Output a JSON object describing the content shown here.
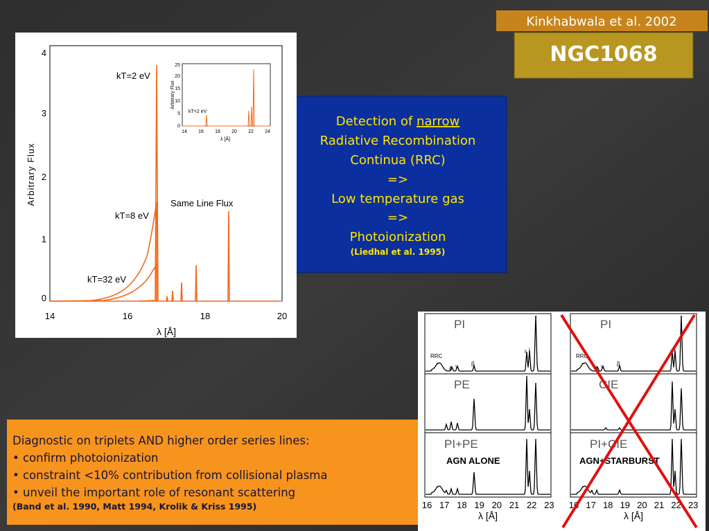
{
  "citation": "Kinkhabwala et al. 2002",
  "object": "NGC1068",
  "blue_box": {
    "lines": [
      "Detection of",
      "narrow",
      "Radiative Recombination",
      "Continua (RRC)",
      "=>",
      "Low temperature gas",
      "=>",
      "Photoionization"
    ],
    "reference": "(Liedhal et al. 1995)"
  },
  "orange_box": {
    "heading": "Diagnostic on triplets AND higher order series lines:",
    "bullets": [
      "• confirm photoionization",
      "• constraint <10% contribution from collisional plasma",
      "• unveil the important role of resonant scattering"
    ],
    "reference": "(Band et al. 1990, Matt 1994, Krolik & Kriss 1995)"
  },
  "left_plot": {
    "y_label": "Arbitrary Flux",
    "x_label": "λ [Å]",
    "x_ticks": [
      "14",
      "16",
      "18",
      "20"
    ],
    "y_ticks": [
      "0",
      "1",
      "2",
      "3",
      "4"
    ],
    "annotations": [
      "kT=2 eV",
      "kT=8 eV",
      "kT=32 eV",
      "Same Line Flux"
    ],
    "inset": {
      "y_label": "Arbitrary Flux",
      "x_label": "λ [Å]",
      "x_ticks": [
        "14",
        "16",
        "18",
        "20",
        "22",
        "24"
      ],
      "y_ticks": [
        "0",
        "5",
        "10",
        "15",
        "20",
        "25"
      ],
      "annotation": "kT=2 eV"
    }
  },
  "right_plot": {
    "left_panels": [
      "PI",
      "PE",
      "PI+PE"
    ],
    "right_panels": [
      "PI",
      "CIE",
      "PI+CIE"
    ],
    "left_caption": "AGN ALONE",
    "right_caption": "AGN+STARBURST",
    "line_labels": [
      "RRC",
      "δ",
      "γ",
      "β",
      "r",
      "i",
      "f"
    ],
    "x_ticks": [
      "16",
      "17",
      "18",
      "19",
      "20",
      "21",
      "22",
      "23"
    ],
    "x_label": "λ [Å]"
  }
}
